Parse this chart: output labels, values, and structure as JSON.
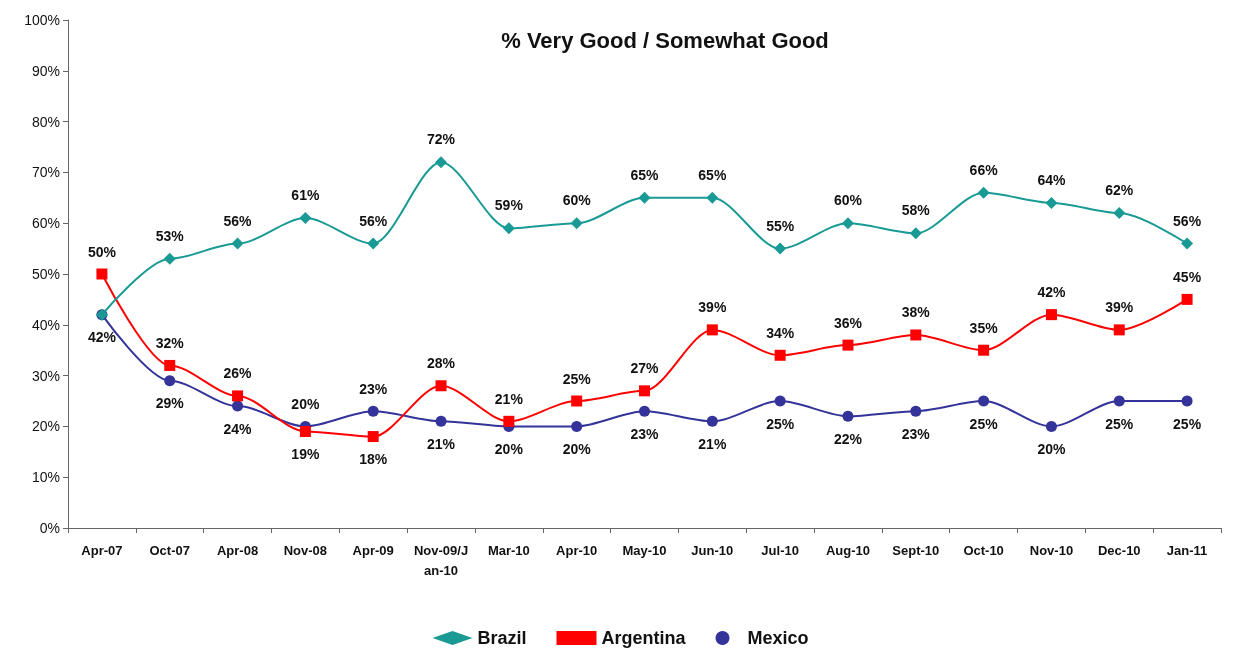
{
  "chart_data": {
    "type": "line",
    "title": "% Very Good / Somewhat Good",
    "categories": [
      "Apr-07",
      "Oct-07",
      "Apr-08",
      "Nov-08",
      "Apr-09",
      "Nov-09/Jan-10",
      "Mar-10",
      "Apr-10",
      "May-10",
      "Jun-10",
      "Jul-10",
      "Aug-10",
      "Sept-10",
      "Oct-10",
      "Nov-10",
      "Dec-10",
      "Jan-11"
    ],
    "series": [
      {
        "name": "Brazil",
        "color": "#1a9a94",
        "marker": "diamond",
        "values": [
          42,
          53,
          56,
          61,
          56,
          72,
          59,
          60,
          65,
          65,
          55,
          60,
          58,
          66,
          64,
          62,
          56
        ],
        "value_labels": [
          null,
          "53%",
          "56%",
          "61%",
          "56%",
          "72%",
          "59%",
          "60%",
          "65%",
          "65%",
          "55%",
          "60%",
          "58%",
          "66%",
          "64%",
          "62%",
          "56%"
        ]
      },
      {
        "name": "Argentina",
        "color": "#ff0000",
        "marker": "square",
        "values": [
          50,
          32,
          26,
          19,
          18,
          28,
          21,
          25,
          27,
          39,
          34,
          36,
          38,
          35,
          42,
          39,
          45
        ],
        "value_labels": [
          "50%",
          "32%",
          "26%",
          "19%",
          "18%",
          "28%",
          "21%",
          "25%",
          "27%",
          "39%",
          "34%",
          "36%",
          "38%",
          "35%",
          "42%",
          "39%",
          "45%"
        ]
      },
      {
        "name": "Mexico",
        "color": "#333399",
        "marker": "circle",
        "values": [
          42,
          29,
          24,
          20,
          23,
          21,
          20,
          20,
          23,
          21,
          25,
          22,
          23,
          25,
          20,
          25,
          25
        ],
        "value_labels": [
          "42%",
          "29%",
          "24%",
          "20%",
          "23%",
          "21%",
          "20%",
          "20%",
          "23%",
          "21%",
          "25%",
          "22%",
          "23%",
          "25%",
          "20%",
          "25%",
          "25%"
        ]
      }
    ],
    "ylim": [
      0,
      100
    ],
    "yticks": [
      {
        "value": 0,
        "label": "0%"
      },
      {
        "value": 10,
        "label": "10%"
      },
      {
        "value": 20,
        "label": "20%"
      },
      {
        "value": 30,
        "label": "30%"
      },
      {
        "value": 40,
        "label": "40%"
      },
      {
        "value": 50,
        "label": "50%"
      },
      {
        "value": 60,
        "label": "60%"
      },
      {
        "value": 70,
        "label": "70%"
      },
      {
        "value": 80,
        "label": "80%"
      },
      {
        "value": 90,
        "label": "90%"
      },
      {
        "value": 100,
        "label": "100%"
      }
    ],
    "grid": false,
    "legend": "bottom",
    "line_style": "solid"
  }
}
